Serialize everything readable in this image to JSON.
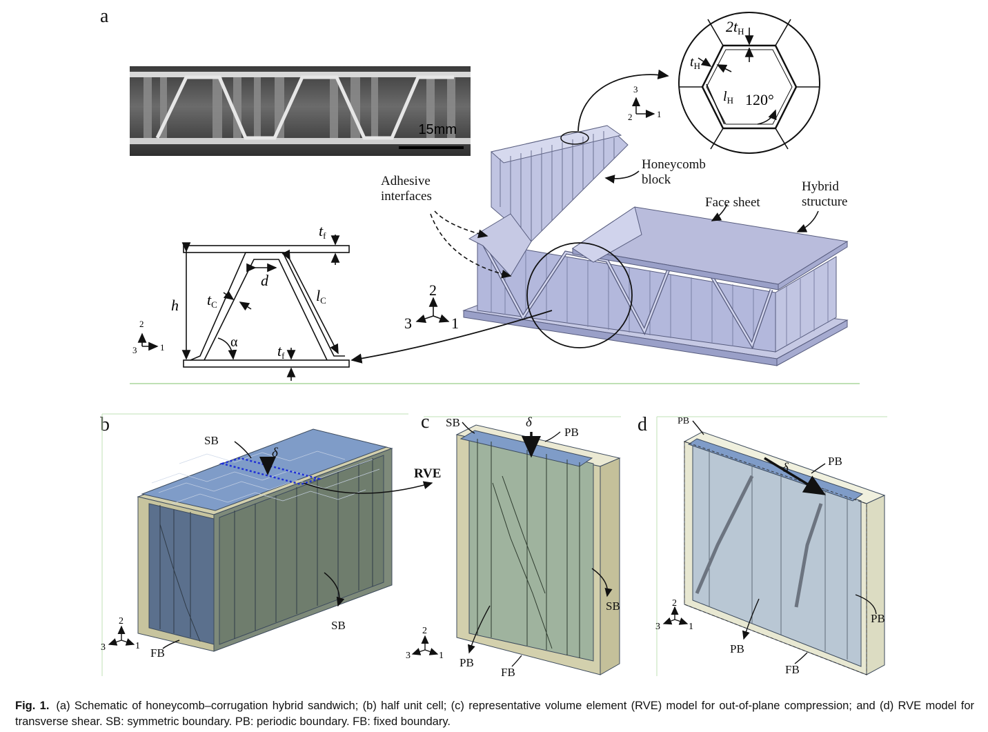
{
  "panels": {
    "a": "a",
    "b": "b",
    "c": "c",
    "d": "d"
  },
  "panel_a": {
    "scale_bar": "15mm",
    "hex_labels": {
      "two_t_h": "2t",
      "t_h": "t",
      "sub_h": "H",
      "l_h": "l",
      "angle": "120°"
    },
    "callouts": {
      "honeycomb_line1": "Honeycomb",
      "honeycomb_line2": "block",
      "adhesive_line1": "Adhesive",
      "adhesive_line2": "interfaces",
      "face_sheet": "Face sheet",
      "hybrid_line1": "Hybrid",
      "hybrid_line2": "structure"
    },
    "schematic": {
      "t": "t",
      "sub_f": "f",
      "sub_c": "C",
      "d": "d",
      "h": "h",
      "l": "l",
      "alpha": "α"
    },
    "axes": {
      "one": "1",
      "two": "2",
      "three": "3"
    }
  },
  "panel_b": {
    "sb_top": "SB",
    "delta": "δ",
    "rve": "RVE",
    "sb_side": "SB",
    "fb": "FB"
  },
  "panel_c": {
    "sb": "SB",
    "delta": "δ",
    "pb_top": "PB",
    "sb_side": "SB",
    "pb": "PB",
    "fb": "FB"
  },
  "panel_d": {
    "pb_top_left": "PB",
    "pb_top": "PB",
    "delta": "δ",
    "pb_side": "PB",
    "pb_front": "PB",
    "fb": "FB"
  },
  "caption": {
    "label": "Fig. 1.",
    "text": "(a) Schematic of honeycomb–corrugation hybrid sandwich; (b) half unit cell; (c) representative volume element (RVE) model for out-of-plane compression; and (d) RVE model for transverse shear. SB: symmetric boundary. PB: periodic boundary. FB: fixed boundary."
  },
  "colors": {
    "model_blue": "#a9aed6",
    "boundary_tan": "#d3d0ad",
    "face_blue": "#7f9cc8",
    "wall_blue": "#5b708d"
  }
}
